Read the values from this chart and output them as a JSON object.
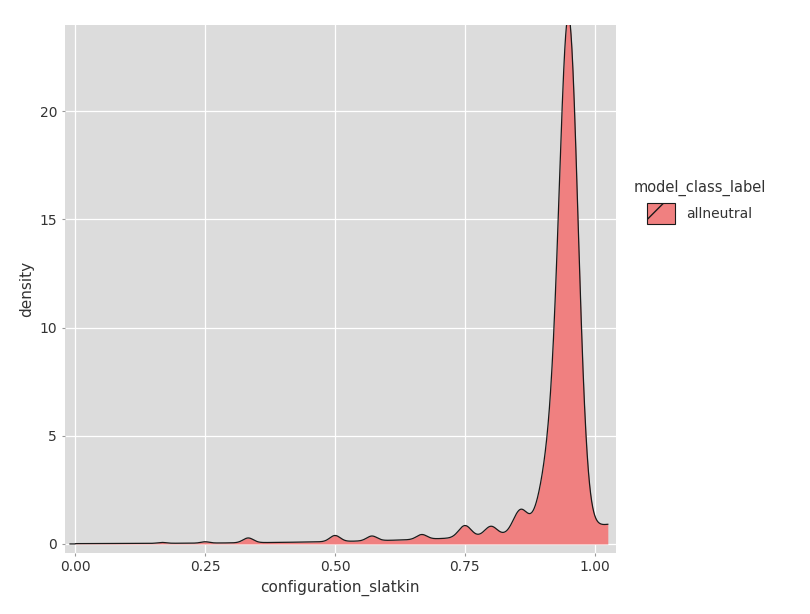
{
  "title": "",
  "xlabel": "configuration_slatkin",
  "ylabel": "density",
  "legend_title": "model_class_label",
  "legend_label": "allneutral",
  "fill_color": "#F08080",
  "line_color": "#1a1a1a",
  "fill_alpha": 1.0,
  "plot_background": "#DCDCDC",
  "fig_background": "#FFFFFF",
  "xlim": [
    -0.02,
    1.04
  ],
  "ylim": [
    -0.4,
    24
  ],
  "yticks": [
    0,
    5,
    10,
    15,
    20
  ],
  "xticks": [
    0.0,
    0.25,
    0.5,
    0.75,
    1.0
  ],
  "figsize": [
    8.1,
    6.14
  ],
  "dpi": 100,
  "bump_centers": [
    0.167,
    0.25,
    0.333,
    0.5,
    0.571,
    0.667,
    0.75,
    0.8,
    0.857,
    0.9,
    0.917,
    0.95
  ],
  "bump_heights": [
    0.04,
    0.06,
    0.22,
    0.28,
    0.22,
    0.22,
    0.55,
    0.45,
    1.1,
    0.45,
    2.8,
    23.0
  ],
  "bump_widths": [
    0.008,
    0.008,
    0.01,
    0.01,
    0.01,
    0.01,
    0.012,
    0.012,
    0.014,
    0.015,
    0.02,
    0.018
  ]
}
